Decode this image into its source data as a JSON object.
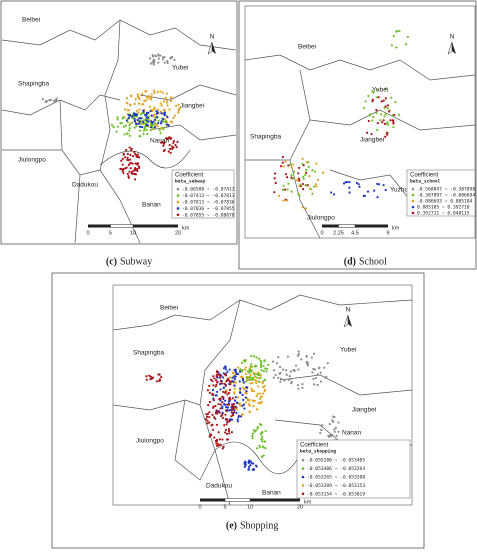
{
  "panels": [
    {
      "caption_letter": "(c)",
      "caption": "Subway",
      "north": "N",
      "labels": [
        "Beibei",
        "Yubei",
        "Shapingba",
        "Jiangbei",
        "Nanan",
        "Jiulongpo",
        "Dadukou",
        "Banan"
      ],
      "legend": {
        "title": "Coefficient",
        "field": "beta_subway",
        "items": [
          {
            "text": "-0.06588 ~ -0.07413",
            "color": "#8c8c8c"
          },
          {
            "text": "-0.07413 ~ -0.07813",
            "color": "#6cc02a"
          },
          {
            "text": "-0.07813 ~ -0.07836",
            "color": "#e4a21c"
          },
          {
            "text": "-0.07836 ~ -0.07855",
            "color": "#2038c0"
          },
          {
            "text": "-0.07855 ~ -0.08870",
            "color": "#a81419"
          }
        ]
      },
      "scale": [
        "0",
        "5",
        "10",
        "20",
        "km"
      ]
    },
    {
      "caption_letter": "(d)",
      "caption": "School",
      "north": "N",
      "labels": [
        "Beibei",
        "Yubei",
        "Shapingba",
        "Jiangbei",
        "Yuzhong",
        "Jiulongpo"
      ],
      "legend": {
        "title": "Coefficient",
        "field": "beta_school",
        "items": [
          {
            "text": "-0.568847 ~ -0.387898",
            "color": "#8c8c8c"
          },
          {
            "text": "-0.387897 ~ -0.086694",
            "color": "#6cc02a"
          },
          {
            "text": "-0.086693 ~ 0.085184",
            "color": "#e4a21c"
          },
          {
            "text": "0.085185 ~ 0.392710",
            "color": "#2038c0"
          },
          {
            "text": "0.392711 ~ 0.848115",
            "color": "#a81419"
          }
        ]
      },
      "scale": [
        "0",
        "2.25",
        "4.5",
        "9",
        "km"
      ]
    },
    {
      "caption_letter": "(e)",
      "caption": "Shopping",
      "north": "N",
      "labels": [
        "Beibei",
        "Yubei",
        "Shapingba",
        "Jiangbei",
        "Nanan",
        "Jiulongpo",
        "Dadukou",
        "Banan"
      ],
      "legend": {
        "title": "Coefficient",
        "field": "beta_shopping",
        "items": [
          {
            "text": "-0.055280 ~ -0.053405",
            "color": "#8c8c8c"
          },
          {
            "text": "-0.053406 ~ -0.053264",
            "color": "#6cc02a"
          },
          {
            "text": "-0.053265 ~ -0.053208",
            "color": "#2038c0"
          },
          {
            "text": "-0.053209 ~ -0.053153",
            "color": "#e4a21c"
          },
          {
            "text": "-0.053154 ~ -0.053019",
            "color": "#a81419"
          }
        ]
      },
      "scale": [
        "0",
        "5",
        "10",
        "20",
        "km"
      ]
    }
  ]
}
